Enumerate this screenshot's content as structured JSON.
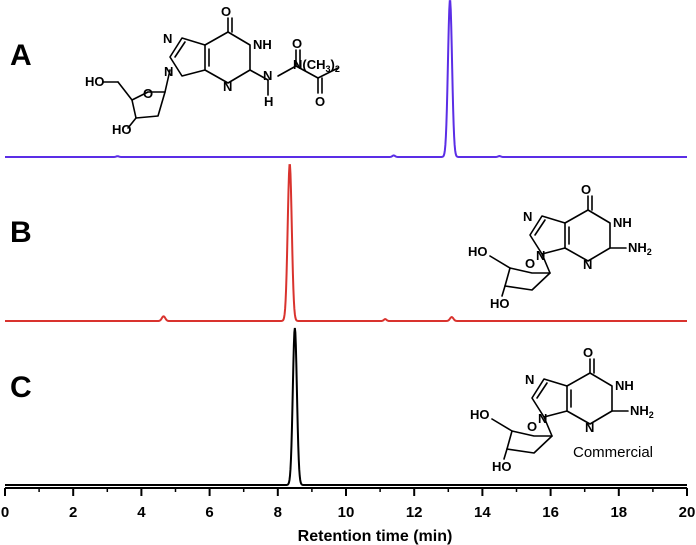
{
  "chart_data": {
    "type": "line",
    "xlabel": "Retention time (min)",
    "ylabel": "",
    "xlim": [
      0,
      20
    ],
    "xticks": [
      0,
      2,
      4,
      6,
      8,
      10,
      12,
      14,
      16,
      18,
      20
    ],
    "grid": false,
    "legend": "none",
    "panels": [
      {
        "label": "A",
        "color": "#5b2ee6",
        "baseline": 0.0,
        "peaks": [
          {
            "x": 13.05,
            "height": 1.0,
            "width": 0.06
          },
          {
            "x": 11.4,
            "height": 0.01,
            "width": 0.04
          },
          {
            "x": 14.5,
            "height": 0.006,
            "width": 0.04
          },
          {
            "x": 3.3,
            "height": 0.005,
            "width": 0.04
          }
        ],
        "structure_labels": [
          "O",
          "N",
          "NH",
          "N",
          "N",
          "N",
          "H",
          "O",
          "O",
          "N(CH3)2",
          "HO",
          "HO",
          "O"
        ]
      },
      {
        "label": "B",
        "color": "#d9332e",
        "baseline": 0.0,
        "peaks": [
          {
            "x": 8.35,
            "height": 1.0,
            "width": 0.06
          },
          {
            "x": 4.65,
            "height": 0.03,
            "width": 0.05
          },
          {
            "x": 13.1,
            "height": 0.025,
            "width": 0.05
          },
          {
            "x": 11.15,
            "height": 0.012,
            "width": 0.04
          }
        ],
        "structure_labels": [
          "O",
          "N",
          "NH",
          "N",
          "N",
          "NH2",
          "HO",
          "HO",
          "O"
        ]
      },
      {
        "label": "C",
        "color": "#000000",
        "baseline": 0.0,
        "peaks": [
          {
            "x": 8.5,
            "height": 1.0,
            "width": 0.06
          }
        ],
        "structure_labels": [
          "O",
          "N",
          "NH",
          "N",
          "N",
          "NH2",
          "HO",
          "HO",
          "O"
        ],
        "annotation": "Commercial"
      }
    ]
  }
}
